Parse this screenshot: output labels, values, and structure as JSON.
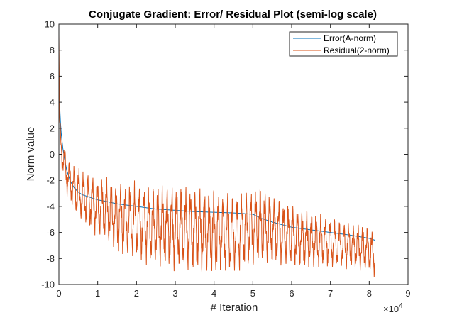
{
  "chart_data": {
    "type": "line",
    "title": "Conjugate Gradient: Error/ Residual Plot (semi-log scale)",
    "xlabel": "# Iteration",
    "ylabel": "Norm value",
    "x_exponent_label": "×10",
    "x_exponent_power": "4",
    "xlim": [
      0,
      90000
    ],
    "ylim": [
      -10,
      10
    ],
    "x_ticks": [
      0,
      10000,
      20000,
      30000,
      40000,
      50000,
      60000,
      70000,
      80000,
      90000
    ],
    "x_tick_labels": [
      "0",
      "1",
      "2",
      "3",
      "4",
      "5",
      "6",
      "7",
      "8",
      "9"
    ],
    "y_ticks": [
      -10,
      -8,
      -6,
      -4,
      -2,
      0,
      2,
      4,
      6,
      8,
      10
    ],
    "y_tick_labels": [
      "-10",
      "-8",
      "-6",
      "-4",
      "-2",
      "0",
      "2",
      "4",
      "6",
      "8",
      "10"
    ],
    "grid": false,
    "legend_placement": "top-right",
    "series": [
      {
        "name": "Error(A-norm)",
        "color": "#0072BD",
        "style": "smooth",
        "x": [
          0,
          200,
          500,
          1000,
          1500,
          2000,
          3000,
          4000,
          5000,
          6000,
          7000,
          8000,
          10000,
          12000,
          15000,
          20000,
          25000,
          30000,
          35000,
          40000,
          45000,
          50000,
          52000,
          55000,
          60000,
          65000,
          70000,
          75000,
          80000,
          81500
        ],
        "y": [
          6.0,
          3.8,
          1.9,
          0.5,
          -0.4,
          -1.2,
          -2.1,
          -2.6,
          -2.9,
          -3.1,
          -3.2,
          -3.3,
          -3.5,
          -3.6,
          -3.8,
          -4.0,
          -4.2,
          -4.3,
          -4.4,
          -4.45,
          -4.5,
          -4.6,
          -4.9,
          -5.2,
          -5.6,
          -5.8,
          -6.0,
          -6.2,
          -6.45,
          -6.6
        ]
      },
      {
        "name": "Residual(2-norm)",
        "color": "#D95319",
        "style": "oscillating",
        "x": [
          0,
          200,
          500,
          1000,
          1500,
          2000,
          3000,
          4000,
          5000,
          6000,
          7000,
          8000,
          10000,
          12000,
          15000,
          20000,
          25000,
          30000,
          35000,
          40000,
          45000,
          50000,
          52000,
          55000,
          60000,
          65000,
          70000,
          75000,
          80000,
          81500
        ],
        "y": [
          9.2,
          2.0,
          0.8,
          -0.3,
          -0.8,
          -1.5,
          -2.2,
          -2.7,
          -3.0,
          -3.2,
          -3.4,
          -3.6,
          -4.0,
          -4.3,
          -4.8,
          -5.2,
          -5.5,
          -5.6,
          -5.8,
          -6.0,
          -6.1,
          -5.6,
          -5.4,
          -5.8,
          -6.3,
          -6.6,
          -6.8,
          -7.0,
          -7.3,
          -7.8
        ],
        "amplitude": [
          0,
          0.6,
          0.8,
          0.9,
          1.0,
          1.0,
          1.1,
          1.2,
          1.3,
          1.3,
          1.4,
          1.4,
          1.5,
          1.6,
          1.8,
          2.0,
          2.1,
          2.2,
          2.2,
          2.2,
          2.1,
          2.0,
          2.0,
          1.8,
          1.6,
          1.5,
          1.3,
          1.2,
          1.2,
          1.1
        ],
        "oscillation_period": 1200
      }
    ]
  }
}
